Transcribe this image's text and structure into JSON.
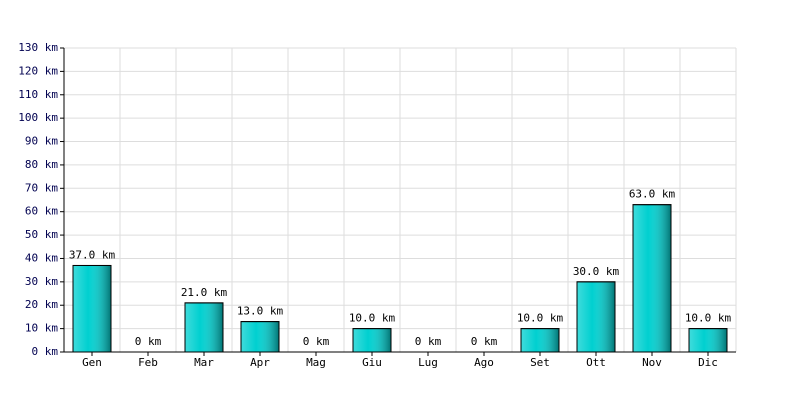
{
  "chart_data": {
    "type": "bar",
    "categories": [
      "Gen",
      "Feb",
      "Mar",
      "Apr",
      "Mag",
      "Giu",
      "Lug",
      "Ago",
      "Set",
      "Ott",
      "Nov",
      "Dic"
    ],
    "values": [
      37,
      0,
      21,
      13,
      0,
      10,
      0,
      0,
      10,
      30,
      63,
      10
    ],
    "value_labels": [
      "37.0 km",
      "0 km",
      "21.0 km",
      "13.0 km",
      "0 km",
      "10.0 km",
      "0 km",
      "0 km",
      "10.0 km",
      "30.0 km",
      "63.0 km",
      "10.0 km"
    ],
    "color": "#00d0d0",
    "ylim": [
      0,
      130
    ],
    "yticks": [
      {
        "value": 0,
        "label": "0 km"
      },
      {
        "value": 10,
        "label": "10 km"
      },
      {
        "value": 20,
        "label": "20 km"
      },
      {
        "value": 30,
        "label": "30 km"
      },
      {
        "value": 40,
        "label": "40 km"
      },
      {
        "value": 50,
        "label": "50 km"
      },
      {
        "value": 60,
        "label": "60 km"
      },
      {
        "value": 70,
        "label": "70 km"
      },
      {
        "value": 80,
        "label": "80 km"
      },
      {
        "value": 90,
        "label": "90 km"
      },
      {
        "value": 100,
        "label": "100 km"
      },
      {
        "value": 110,
        "label": "110 km"
      },
      {
        "value": 120,
        "label": "120 km"
      },
      {
        "value": 130,
        "label": "130 km"
      }
    ],
    "grid": true
  }
}
